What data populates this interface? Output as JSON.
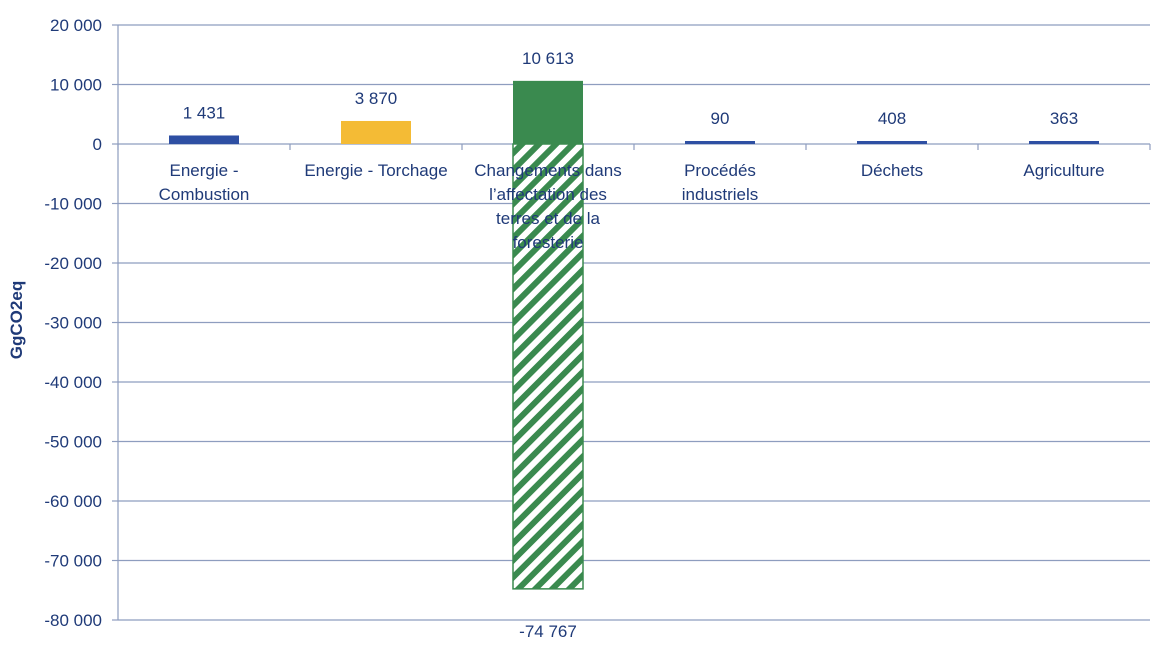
{
  "chart_data": {
    "type": "bar",
    "title": "",
    "xlabel": "",
    "ylabel": "GgCO2eq",
    "ylim": [
      -80000,
      20000
    ],
    "yticks": [
      20000,
      10000,
      0,
      -10000,
      -20000,
      -30000,
      -40000,
      -50000,
      -60000,
      -70000,
      -80000
    ],
    "ytick_labels": [
      "20 000",
      "10 000",
      "0",
      "-10 000",
      "-20 000",
      "-30 000",
      "-40 000",
      "-50 000",
      "-60 000",
      "-70 000",
      "-80 000"
    ],
    "grid": true,
    "legend": "none",
    "categories": [
      [
        "Energie -",
        "Combustion"
      ],
      [
        "Energie - Torchage"
      ],
      [
        "Changements dans",
        "l’affectation des",
        "terres et de la",
        "foresterie"
      ],
      [
        "Procédés",
        "industriels"
      ],
      [
        "Déchets"
      ],
      [
        "Agriculture"
      ]
    ],
    "series": [
      {
        "values": [
          1431,
          3870,
          10613,
          90,
          408,
          363
        ],
        "labels": [
          "1 431",
          "3 870",
          "10 613",
          "90",
          "408",
          "363"
        ],
        "colors": [
          "#2e4fa3",
          "#f4bb35",
          "#3a8a4f",
          "#2e4fa3",
          "#2e4fa3",
          "#2e4fa3"
        ]
      },
      {
        "values": [
          0,
          0,
          -74767,
          0,
          0,
          0
        ],
        "labels": [
          "",
          "",
          "-74 767",
          "",
          "",
          ""
        ],
        "colors": [
          "#2e4fa3",
          "#2e4fa3",
          "#3a8a4f",
          "#2e4fa3",
          "#2e4fa3",
          "#2e4fa3"
        ],
        "pattern": "diagonal-hatch"
      }
    ]
  }
}
